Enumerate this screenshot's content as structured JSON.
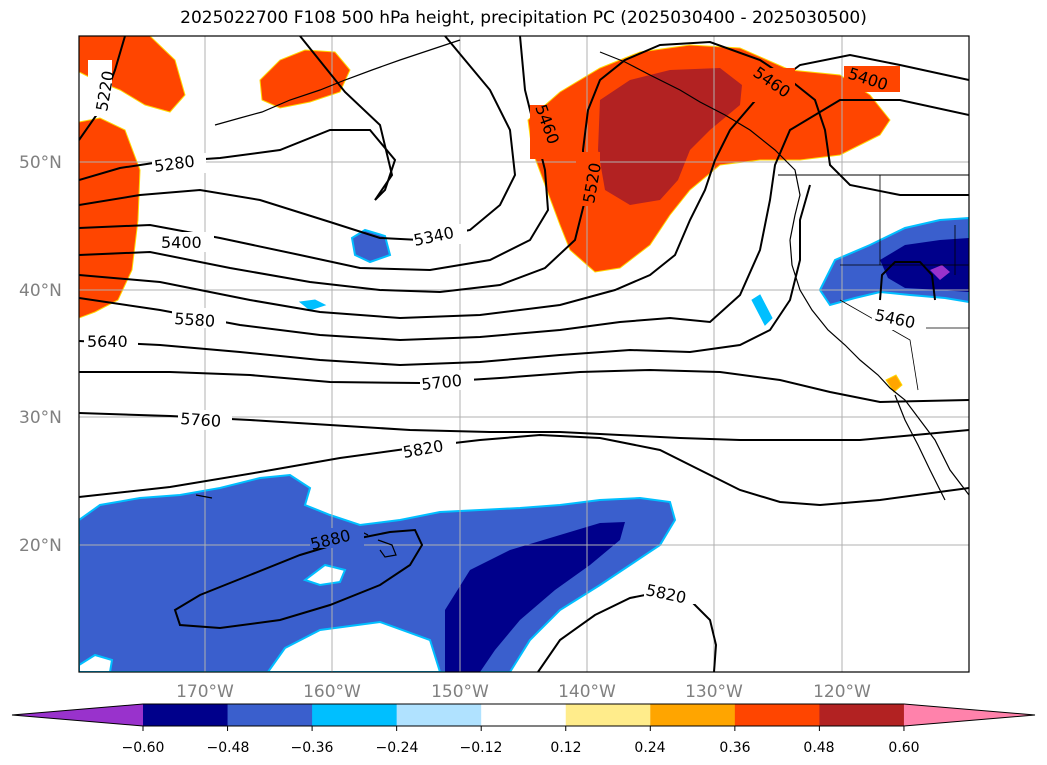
{
  "title": "2025022700 F108 500 hPa height, precipitation PC (2025030400 - 2025030500)",
  "map": {
    "lat_labels": [
      "50°N",
      "40°N",
      "30°N",
      "20°N"
    ],
    "lon_labels": [
      "170°W",
      "160°W",
      "150°W",
      "140°W",
      "130°W",
      "120°W"
    ],
    "contour_labels": [
      "5220",
      "5280",
      "5400",
      "5340",
      "5460",
      "5520",
      "5460",
      "5400",
      "5580",
      "5640",
      "5700",
      "5760",
      "5820",
      "5880",
      "5820",
      "5460"
    ]
  },
  "colorbar": {
    "ticks": [
      "−0.60",
      "−0.48",
      "−0.36",
      "−0.24",
      "−0.12",
      "0.12",
      "0.24",
      "0.36",
      "0.48",
      "0.60"
    ],
    "colors": [
      "#9932cc",
      "#00008b",
      "#3a5fcd",
      "#00bfff",
      "#b0e2ff",
      "#ffffff",
      "#ffec8b",
      "#ffa500",
      "#ff4500",
      "#b22222",
      "#ff82ab"
    ]
  }
}
